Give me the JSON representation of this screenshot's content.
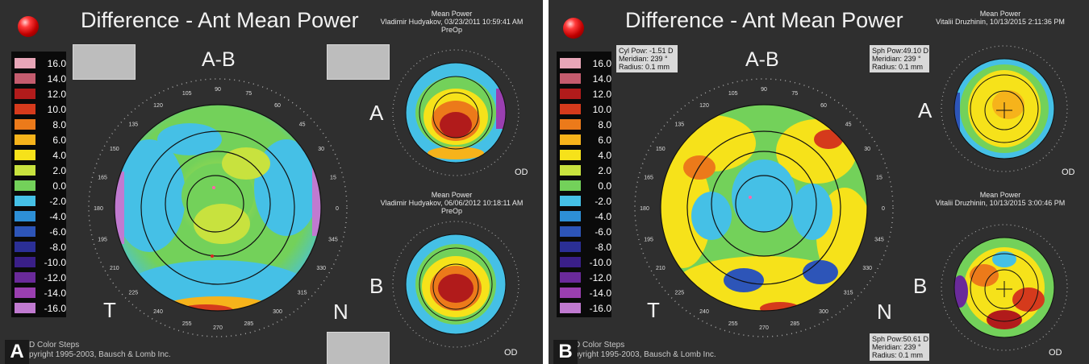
{
  "legend_values": [
    "16.0",
    "14.0",
    "12.0",
    "10.0",
    "8.0",
    "6.0",
    "4.0",
    "2.0",
    "0.0",
    "-2.0",
    "-4.0",
    "-6.0",
    "-8.0",
    "-10.0",
    "-12.0",
    "-14.0",
    "-16.0"
  ],
  "legend_colors": [
    "#e8a6b8",
    "#c45c6e",
    "#b11b1b",
    "#d53a1c",
    "#ec7a1a",
    "#f6b31b",
    "#f6e21a",
    "#c8e23e",
    "#73d15a",
    "#45c0e6",
    "#2d8fd6",
    "#2d55b8",
    "#2b2f96",
    "#3a1f88",
    "#6a2a9a",
    "#9a3fb0",
    "#c07ad0"
  ],
  "compass_labels": [
    "90",
    "105",
    "120",
    "135",
    "150",
    "165",
    "180",
    "195",
    "210",
    "225",
    "240",
    "255",
    "270",
    "285",
    "300",
    "315",
    "330",
    "345",
    "0",
    "15",
    "30",
    "45",
    "60",
    "75"
  ],
  "panel_a": {
    "badge": "A",
    "title": "Difference - Ant Mean Power",
    "axis_label": "A-B",
    "temporal": "T",
    "nasal": "N",
    "footer_line1": "D Color Steps",
    "footer_line2": "pyright 1995-2003, Bausch & Lomb Inc.",
    "top_map": {
      "header1": "Mean Power",
      "header2": "Vladimir Hudyakov, 03/23/2011 10:59:41 AM",
      "header3": "PreOp",
      "letter": "A",
      "od": "OD"
    },
    "bottom_map": {
      "header1": "Mean Power",
      "header2": "Vladimir Hudyakov, 06/06/2012 10:18:11 AM",
      "header3": "PreOp",
      "letter": "B",
      "od": "OD"
    }
  },
  "panel_b": {
    "badge": "B",
    "title": "Difference - Ant Mean Power",
    "axis_label": "A-B",
    "temporal": "T",
    "nasal": "N",
    "footer_line1": "D Color Steps",
    "footer_line2": "pyright 1995-2003, Bausch & Lomb Inc.",
    "info_main": {
      "line1": "Cyl Pow:  -1.51 D",
      "line2": "Meridian:   239 °",
      "line3": "Radius:    0.1 mm"
    },
    "info_top": {
      "line1": "Sph Pow:49.10 D",
      "line2": "Meridian:   239 °",
      "line3": "Radius:    0.1 mm"
    },
    "info_bottom": {
      "line1": "Sph Pow:50.61 D",
      "line2": "Meridian:   239 °",
      "line3": "Radius:    0.1 mm"
    },
    "top_map": {
      "header1": "Mean Power",
      "header2": "Vitalii Druzhinin, 10/13/2015 2:11:36 PM",
      "letter": "A",
      "od": "OD"
    },
    "bottom_map": {
      "header1": "Mean Power",
      "header2": "Vitalii Druzhinin, 10/13/2015 3:00:46 PM",
      "letter": "B",
      "od": "OD"
    }
  }
}
